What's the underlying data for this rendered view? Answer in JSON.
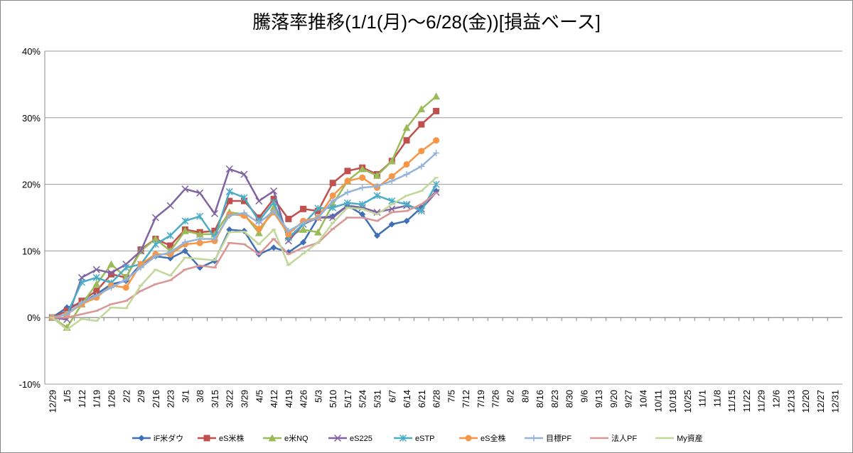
{
  "chart_data": {
    "type": "line",
    "title": "騰落率推移(1/1(月)～6/28(金))[損益ベース]",
    "categories": [
      "12/29",
      "1/5",
      "1/12",
      "1/19",
      "1/26",
      "2/2",
      "2/9",
      "2/16",
      "2/23",
      "3/1",
      "3/8",
      "3/15",
      "3/22",
      "3/29",
      "4/5",
      "4/12",
      "4/19",
      "4/26",
      "5/3",
      "5/10",
      "5/17",
      "5/24",
      "5/31",
      "6/7",
      "6/14",
      "6/21",
      "6/28",
      "7/5",
      "7/12",
      "7/19",
      "7/26",
      "8/2",
      "8/9",
      "8/16",
      "8/23",
      "8/30",
      "9/6",
      "9/13",
      "9/20",
      "9/27",
      "10/4",
      "10/11",
      "10/18",
      "10/25",
      "11/1",
      "11/8",
      "11/15",
      "11/22",
      "11/29",
      "12/6",
      "12/13",
      "12/20",
      "12/27",
      "12/31"
    ],
    "ylim": [
      -10,
      40
    ],
    "yticks": [
      {
        "value": -10,
        "label": "-10%"
      },
      {
        "value": 0,
        "label": "0%"
      },
      {
        "value": 10,
        "label": "10%"
      },
      {
        "value": 20,
        "label": "20%"
      },
      {
        "value": 30,
        "label": "30%"
      },
      {
        "value": 40,
        "label": "40%"
      }
    ],
    "grid": true,
    "legend": "bottom",
    "series": [
      {
        "name": "iF米ダウ",
        "color": "#3f6fb5",
        "marker": "diamond",
        "values": [
          0,
          1.5,
          2.2,
          3.5,
          5.0,
          5.5,
          8.0,
          9.2,
          8.9,
          10.0,
          7.5,
          8.5,
          13.2,
          13.0,
          9.5,
          10.5,
          9.8,
          11.3,
          15.0,
          15.2,
          16.8,
          15.5,
          12.3,
          14.0,
          14.5,
          16.5,
          19.0,
          null,
          null,
          null,
          null,
          null,
          null,
          null,
          null,
          null,
          null,
          null,
          null,
          null,
          null,
          null,
          null,
          null,
          null,
          null,
          null,
          null,
          null,
          null,
          null,
          null,
          null,
          null
        ]
      },
      {
        "name": "eS米株",
        "color": "#c0504d",
        "marker": "square",
        "values": [
          0,
          1.0,
          2.5,
          4.0,
          6.5,
          6.0,
          10.2,
          11.8,
          10.8,
          13.2,
          12.8,
          13.0,
          17.5,
          17.5,
          15.0,
          17.8,
          14.8,
          16.3,
          16.0,
          20.2,
          22.0,
          22.5,
          21.5,
          23.5,
          26.6,
          29.0,
          31.0,
          null,
          null,
          null,
          null,
          null,
          null,
          null,
          null,
          null,
          null,
          null,
          null,
          null,
          null,
          null,
          null,
          null,
          null,
          null,
          null,
          null,
          null,
          null,
          null,
          null,
          null,
          null
        ]
      },
      {
        "name": "e米NQ",
        "color": "#9bbb59",
        "marker": "triangle",
        "values": [
          0,
          -1.5,
          2.0,
          5.0,
          8.0,
          6.0,
          10.0,
          11.8,
          10.0,
          13.0,
          12.5,
          12.5,
          15.8,
          15.5,
          12.7,
          16.5,
          12.2,
          13.2,
          12.8,
          17.0,
          20.5,
          22.3,
          21.3,
          23.5,
          28.5,
          31.3,
          33.2,
          null,
          null,
          null,
          null,
          null,
          null,
          null,
          null,
          null,
          null,
          null,
          null,
          null,
          null,
          null,
          null,
          null,
          null,
          null,
          null,
          null,
          null,
          null,
          null,
          null,
          null,
          null
        ]
      },
      {
        "name": "eS225",
        "color": "#8064a2",
        "marker": "x",
        "values": [
          0,
          -0.3,
          6.0,
          7.2,
          6.7,
          8.0,
          10.0,
          15.0,
          16.8,
          19.3,
          18.7,
          15.6,
          22.3,
          21.5,
          17.5,
          19.0,
          11.5,
          14.0,
          15.0,
          15.0,
          16.8,
          16.5,
          15.8,
          16.3,
          16.8,
          16.3,
          18.8,
          null,
          null,
          null,
          null,
          null,
          null,
          null,
          null,
          null,
          null,
          null,
          null,
          null,
          null,
          null,
          null,
          null,
          null,
          null,
          null,
          null,
          null,
          null,
          null,
          null,
          null,
          null
        ]
      },
      {
        "name": "eSTP",
        "color": "#4bacc6",
        "marker": "star",
        "values": [
          0,
          0.5,
          5.3,
          6.0,
          5.2,
          7.5,
          8.0,
          11.0,
          12.3,
          14.5,
          15.2,
          12.0,
          18.9,
          18.0,
          14.5,
          17.3,
          12.0,
          14.0,
          16.4,
          16.5,
          17.2,
          17.0,
          18.3,
          17.5,
          17.0,
          16.0,
          20.0,
          null,
          null,
          null,
          null,
          null,
          null,
          null,
          null,
          null,
          null,
          null,
          null,
          null,
          null,
          null,
          null,
          null,
          null,
          null,
          null,
          null,
          null,
          null,
          null,
          null,
          null,
          null
        ]
      },
      {
        "name": "eS全株",
        "color": "#f79646",
        "marker": "circle",
        "values": [
          0,
          0.5,
          2.0,
          3.0,
          4.8,
          4.5,
          8.0,
          9.5,
          9.5,
          11.0,
          11.2,
          11.5,
          15.5,
          15.3,
          13.3,
          15.8,
          12.5,
          14.5,
          15.0,
          18.3,
          20.5,
          21.0,
          19.5,
          21.2,
          23.0,
          25.0,
          26.6,
          null,
          null,
          null,
          null,
          null,
          null,
          null,
          null,
          null,
          null,
          null,
          null,
          null,
          null,
          null,
          null,
          null,
          null,
          null,
          null,
          null,
          null,
          null,
          null,
          null,
          null,
          null
        ]
      },
      {
        "name": "目標PF",
        "color": "#95b3d7",
        "marker": "plus",
        "values": [
          0,
          0.5,
          2.2,
          3.3,
          4.5,
          5.7,
          7.5,
          9.2,
          9.8,
          11.3,
          11.8,
          11.8,
          15.3,
          15.7,
          14.2,
          16.0,
          13.0,
          14.2,
          15.0,
          17.5,
          18.8,
          19.5,
          19.7,
          20.5,
          21.5,
          22.7,
          24.7,
          null,
          null,
          null,
          null,
          null,
          null,
          null,
          null,
          null,
          null,
          null,
          null,
          null,
          null,
          null,
          null,
          null,
          null,
          null,
          null,
          null,
          null,
          null,
          null,
          null,
          null,
          null
        ]
      },
      {
        "name": "法人PF",
        "color": "#d99694",
        "marker": "dash",
        "values": [
          0,
          0,
          0.5,
          1.0,
          2.0,
          2.5,
          4.0,
          5.0,
          5.6,
          7.2,
          7.8,
          7.5,
          11.2,
          11.0,
          9.5,
          11.8,
          9.5,
          10.5,
          11.2,
          13.3,
          15.0,
          15.0,
          14.5,
          15.8,
          16.0,
          17.0,
          18.7,
          null,
          null,
          null,
          null,
          null,
          null,
          null,
          null,
          null,
          null,
          null,
          null,
          null,
          null,
          null,
          null,
          null,
          null,
          null,
          null,
          null,
          null,
          null,
          null,
          null,
          null,
          null
        ]
      },
      {
        "name": "My資産",
        "color": "#c3d69b",
        "marker": "dash",
        "values": [
          0,
          -1.8,
          -0.2,
          -0.5,
          1.5,
          1.4,
          4.8,
          7.2,
          6.3,
          9.0,
          8.8,
          8.6,
          12.8,
          12.9,
          11.0,
          13.2,
          7.9,
          9.6,
          11.3,
          14.2,
          16.5,
          16.3,
          15.5,
          17.0,
          18.3,
          19.0,
          21.0,
          null,
          null,
          null,
          null,
          null,
          null,
          null,
          null,
          null,
          null,
          null,
          null,
          null,
          null,
          null,
          null,
          null,
          null,
          null,
          null,
          null,
          null,
          null,
          null,
          null,
          null,
          null
        ]
      }
    ]
  }
}
